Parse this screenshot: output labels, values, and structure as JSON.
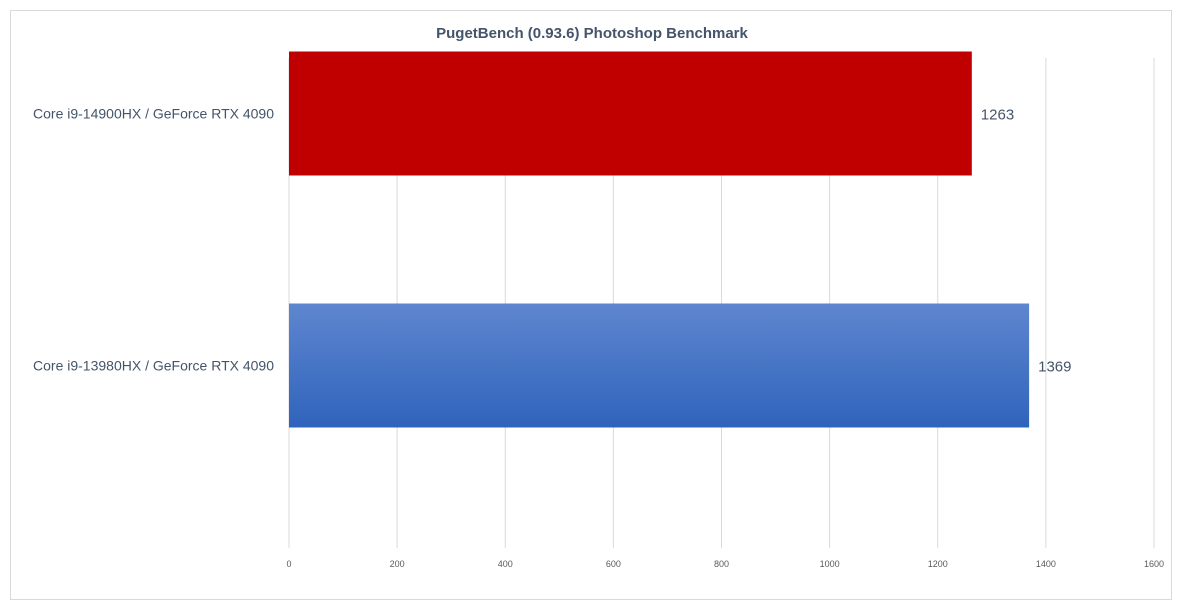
{
  "chart_data": {
    "type": "bar",
    "orientation": "horizontal",
    "title": "PugetBench (0.93.6) Photoshop Benchmark",
    "categories": [
      "Core i9-14900HX / GeForce RTX 4090",
      "Core i9-13980HX / GeForce RTX 4090"
    ],
    "values": [
      1263,
      1369
    ],
    "data_labels": [
      "1263",
      "1369"
    ],
    "colors": [
      "#c00000",
      "#4472c4"
    ],
    "xlim": [
      0,
      1600
    ],
    "xticks": [
      0,
      200,
      400,
      600,
      800,
      1000,
      1200,
      1400,
      1600
    ],
    "xtick_labels": [
      "0",
      "200",
      "400",
      "600",
      "800",
      "1000",
      "1200",
      "1400",
      "1600"
    ],
    "grid": "vertical",
    "legend": "none"
  }
}
